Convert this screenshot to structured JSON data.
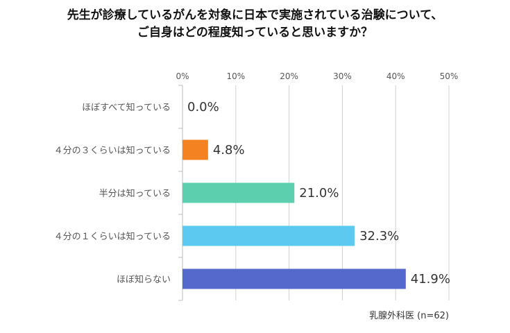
{
  "chart_data": {
    "type": "bar",
    "orientation": "horizontal",
    "title_lines": [
      "先生が診療しているがんを対象に日本で実施されている治験について、",
      "ご自身はどの程度知っていると思いますか？"
    ],
    "categories": [
      "ほぼすべて知っている",
      "４分の３くらいは知っている",
      "半分は知っている",
      "４分の１くらいは知っている",
      "ほぼ知らない"
    ],
    "values": [
      0.0,
      4.8,
      21.0,
      32.3,
      41.9
    ],
    "value_labels": [
      "0.0%",
      "4.8%",
      "21.0%",
      "32.3%",
      "41.9%"
    ],
    "colors": [
      "#f58220",
      "#f58220",
      "#5ccfae",
      "#5bc9f0",
      "#5569cc"
    ],
    "xlim": [
      0,
      50
    ],
    "xticks": [
      "0%",
      "10%",
      "20%",
      "30%",
      "40%",
      "50%"
    ],
    "grid": true,
    "axis_position": "top",
    "note": "乳腺外科医 (n=62)"
  }
}
